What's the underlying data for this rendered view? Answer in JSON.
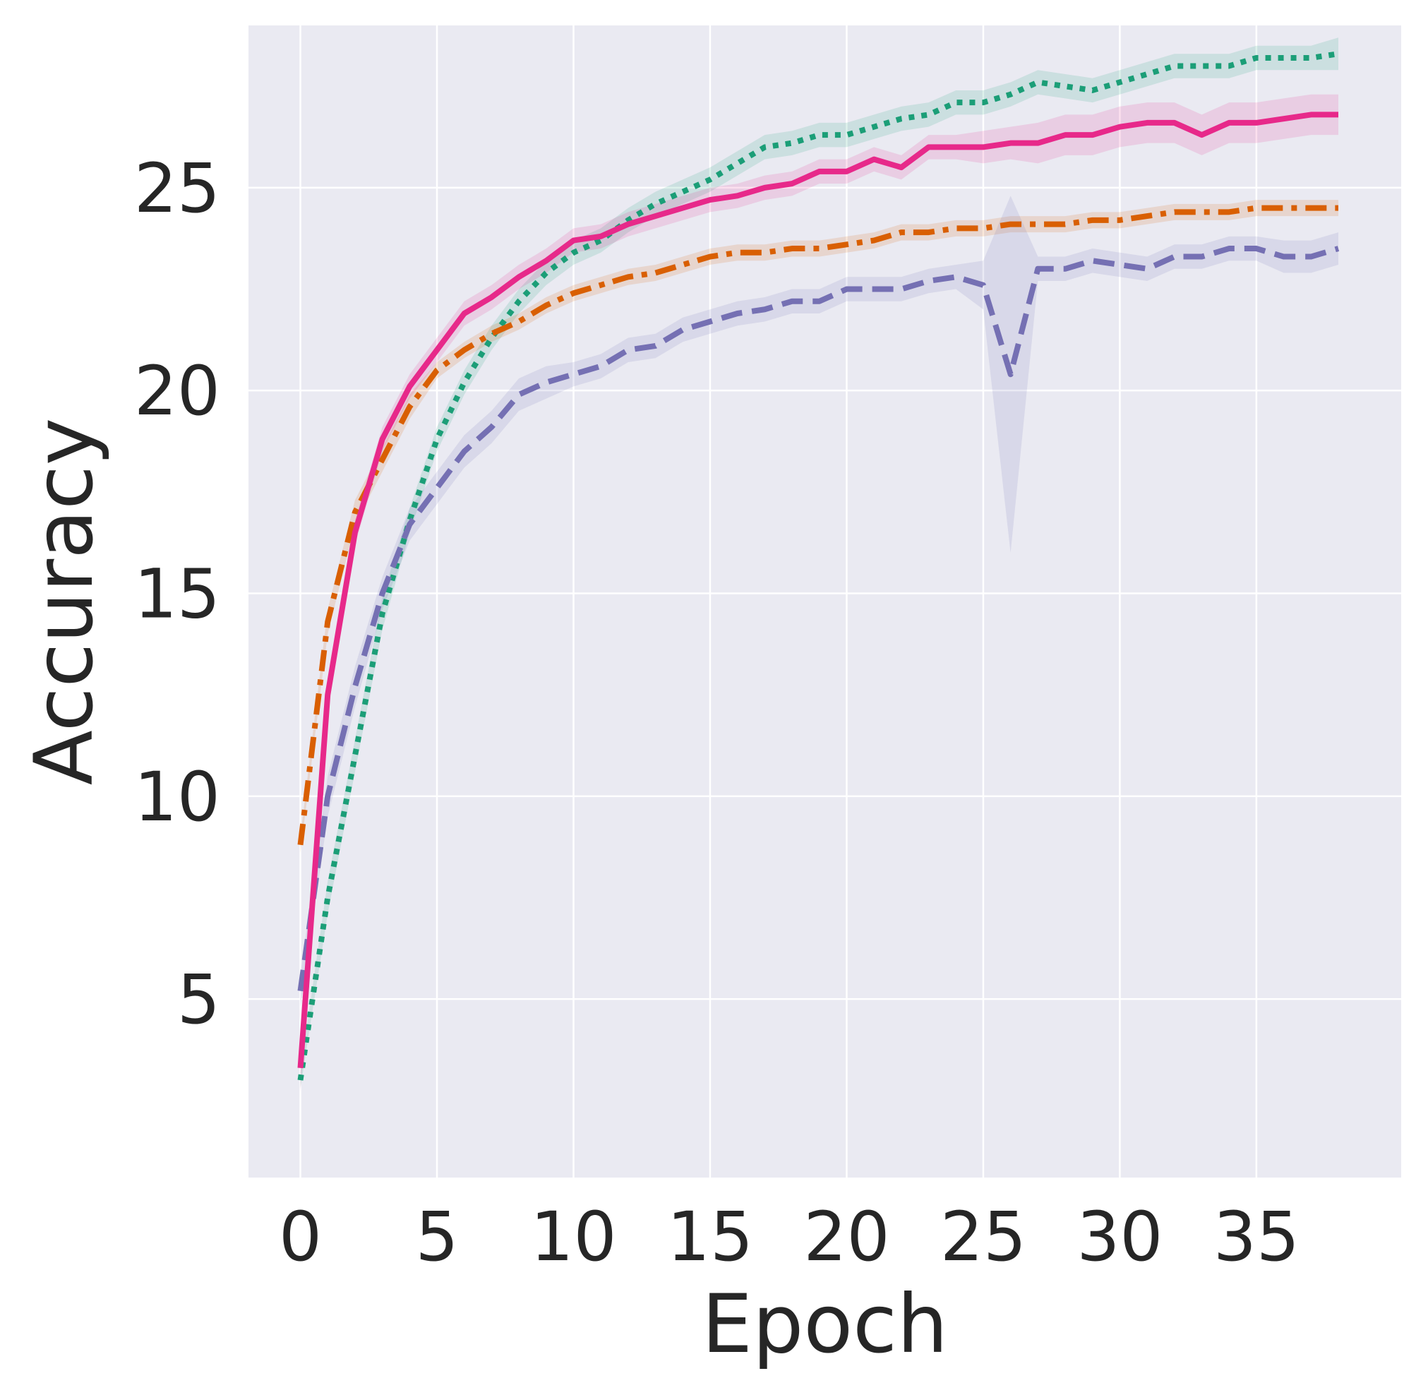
{
  "chart_data": {
    "type": "line",
    "title": "",
    "xlabel": "Epoch",
    "ylabel": "Accuracy",
    "xlim": [
      -1.9,
      40.3
    ],
    "ylim": [
      0.6,
      29.0
    ],
    "xticks": [
      0,
      5,
      10,
      15,
      20,
      25,
      30,
      35
    ],
    "yticks": [
      5,
      10,
      15,
      20,
      25
    ],
    "grid": true,
    "background": "#eaeaf2",
    "legend": "none",
    "x": [
      0,
      1,
      2,
      3,
      4,
      5,
      6,
      7,
      8,
      9,
      10,
      11,
      12,
      13,
      14,
      15,
      16,
      17,
      18,
      19,
      20,
      21,
      22,
      23,
      24,
      25,
      26,
      27,
      28,
      29,
      30,
      31,
      32,
      33,
      34,
      35,
      36,
      37,
      38
    ],
    "series": [
      {
        "color": "#1b9e77",
        "dash": "dotted",
        "values": [
          3.0,
          7.5,
          11.0,
          14.5,
          16.8,
          18.8,
          20.2,
          21.3,
          22.2,
          22.9,
          23.4,
          23.7,
          24.2,
          24.6,
          24.9,
          25.2,
          25.6,
          26.0,
          26.1,
          26.3,
          26.3,
          26.5,
          26.7,
          26.8,
          27.1,
          27.1,
          27.3,
          27.6,
          27.5,
          27.4,
          27.6,
          27.8,
          28.0,
          28.0,
          28.0,
          28.2,
          28.2,
          28.2,
          28.3
        ],
        "band": [
          0.2,
          0.4,
          0.4,
          0.4,
          0.3,
          0.3,
          0.3,
          0.3,
          0.3,
          0.3,
          0.3,
          0.3,
          0.3,
          0.3,
          0.3,
          0.3,
          0.3,
          0.3,
          0.3,
          0.3,
          0.3,
          0.3,
          0.3,
          0.3,
          0.3,
          0.3,
          0.3,
          0.3,
          0.3,
          0.3,
          0.3,
          0.3,
          0.3,
          0.3,
          0.3,
          0.3,
          0.3,
          0.3,
          0.4
        ]
      },
      {
        "color": "#d95f02",
        "dash": "dashdot",
        "values": [
          8.8,
          14.3,
          17.0,
          18.3,
          19.6,
          20.5,
          21.0,
          21.4,
          21.7,
          22.1,
          22.4,
          22.6,
          22.8,
          22.9,
          23.1,
          23.3,
          23.4,
          23.4,
          23.5,
          23.5,
          23.6,
          23.7,
          23.9,
          23.9,
          24.0,
          24.0,
          24.1,
          24.1,
          24.1,
          24.2,
          24.2,
          24.3,
          24.4,
          24.4,
          24.4,
          24.5,
          24.5,
          24.5,
          24.5
        ],
        "band": [
          0.2,
          0.3,
          0.3,
          0.3,
          0.3,
          0.2,
          0.2,
          0.2,
          0.2,
          0.2,
          0.2,
          0.2,
          0.2,
          0.2,
          0.2,
          0.2,
          0.2,
          0.2,
          0.2,
          0.2,
          0.2,
          0.2,
          0.2,
          0.2,
          0.2,
          0.2,
          0.2,
          0.2,
          0.2,
          0.2,
          0.2,
          0.2,
          0.2,
          0.2,
          0.2,
          0.2,
          0.2,
          0.2,
          0.2
        ]
      },
      {
        "color": "#7570b3",
        "dash": "dashed",
        "values": [
          5.2,
          10.0,
          12.7,
          15.0,
          16.7,
          17.6,
          18.5,
          19.1,
          19.9,
          20.2,
          20.4,
          20.6,
          21.0,
          21.1,
          21.5,
          21.7,
          21.9,
          22.0,
          22.2,
          22.2,
          22.5,
          22.5,
          22.5,
          22.7,
          22.8,
          22.6,
          20.4,
          23.0,
          23.0,
          23.2,
          23.1,
          23.0,
          23.3,
          23.3,
          23.5,
          23.5,
          23.3,
          23.3,
          23.5
        ],
        "band": [
          0.4,
          0.5,
          0.5,
          0.4,
          0.4,
          0.4,
          0.4,
          0.4,
          0.4,
          0.4,
          0.3,
          0.3,
          0.3,
          0.3,
          0.3,
          0.3,
          0.3,
          0.3,
          0.3,
          0.3,
          0.3,
          0.3,
          0.3,
          0.3,
          0.3,
          0.6,
          4.4,
          0.3,
          0.3,
          0.3,
          0.3,
          0.3,
          0.3,
          0.3,
          0.3,
          0.3,
          0.4,
          0.4,
          0.4
        ]
      },
      {
        "color": "#e7298a",
        "dash": "solid",
        "values": [
          3.3,
          12.5,
          16.5,
          18.8,
          20.1,
          21.0,
          21.9,
          22.3,
          22.8,
          23.2,
          23.7,
          23.8,
          24.1,
          24.3,
          24.5,
          24.7,
          24.8,
          25.0,
          25.1,
          25.4,
          25.4,
          25.7,
          25.5,
          26.0,
          26.0,
          26.0,
          26.1,
          26.1,
          26.3,
          26.3,
          26.5,
          26.6,
          26.6,
          26.3,
          26.6,
          26.6,
          26.7,
          26.8,
          26.8
        ],
        "band": [
          0.6,
          0.4,
          0.3,
          0.3,
          0.3,
          0.3,
          0.3,
          0.3,
          0.3,
          0.3,
          0.3,
          0.3,
          0.3,
          0.3,
          0.3,
          0.3,
          0.3,
          0.3,
          0.3,
          0.3,
          0.3,
          0.3,
          0.3,
          0.3,
          0.3,
          0.4,
          0.4,
          0.5,
          0.5,
          0.5,
          0.5,
          0.5,
          0.5,
          0.5,
          0.5,
          0.5,
          0.5,
          0.5,
          0.5
        ]
      }
    ]
  }
}
